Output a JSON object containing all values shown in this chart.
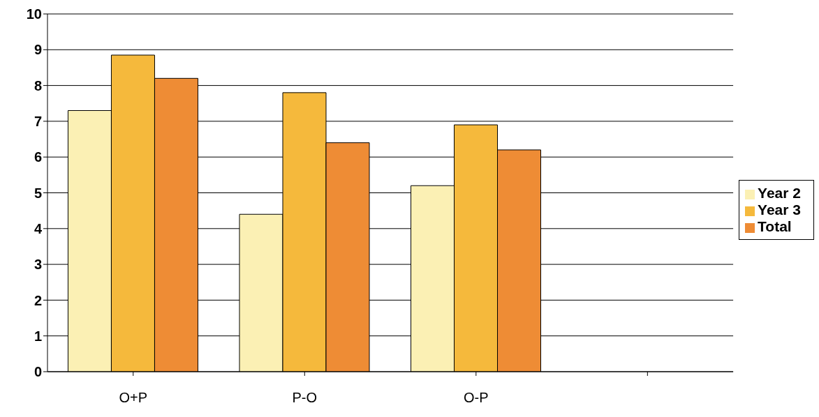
{
  "chart_data": {
    "type": "bar",
    "categories": [
      "O+P",
      "P-O",
      "O-P",
      null
    ],
    "series": [
      {
        "name": "Year 2",
        "color": "#fbf0b4",
        "values": [
          7.3,
          4.4,
          5.2,
          null
        ]
      },
      {
        "name": "Year 3",
        "color": "#f5b93c",
        "values": [
          8.85,
          7.8,
          6.9,
          null
        ]
      },
      {
        "name": "Total",
        "color": "#ee8c35",
        "values": [
          8.2,
          6.4,
          6.2,
          null
        ]
      }
    ],
    "ylim": [
      0,
      10
    ],
    "yticks": [
      0,
      1,
      2,
      3,
      4,
      5,
      6,
      7,
      8,
      9,
      10
    ],
    "grid": "y",
    "legend": "right"
  }
}
